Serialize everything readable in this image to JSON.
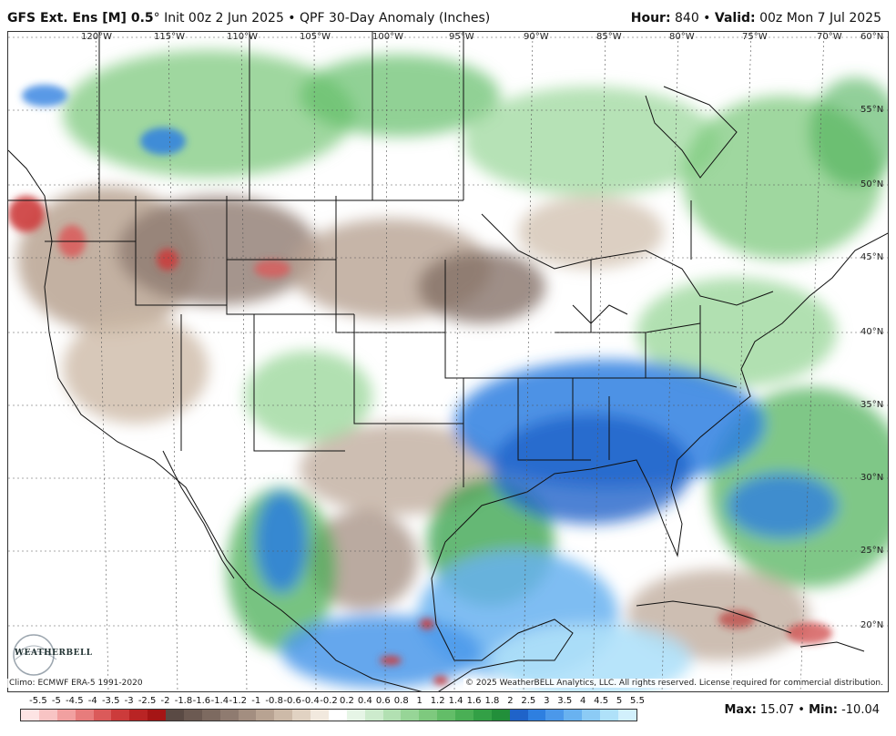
{
  "header": {
    "model": "GFS Ext. Ens [M] 0.5",
    "degree": "°",
    "init": " Init 00z 2 Jun 2025",
    "sep": " • ",
    "product": "QPF 30-Day Anomaly (Inches)",
    "hour_label": "Hour:",
    "hour_value": " 840",
    "valid_label": "Valid:",
    "valid_value": " 00z Mon 7 Jul 2025"
  },
  "map": {
    "longitudes": [
      "120°W",
      "115°W",
      "110°W",
      "105°W",
      "100°W",
      "95°W",
      "90°W",
      "85°W",
      "80°W",
      "75°W",
      "70°W"
    ],
    "latitudes": [
      "60°N",
      "55°N",
      "50°N",
      "45°N",
      "40°N",
      "35°N",
      "30°N",
      "25°N",
      "20°N"
    ],
    "climo_note": "Climo: ECMWF ERA-5 1991-2020",
    "copyright": "© 2025 WeatherBELL Analytics, LLC. All rights reserved. License required for commercial distribution.",
    "logo_text": "WEATHERBELL"
  },
  "colorbar": {
    "labels": [
      "-5.5",
      "-5",
      "-4.5",
      "-4",
      "-3.5",
      "-3",
      "-2.5",
      "-2",
      "-1.8",
      "-1.6",
      "-1.4",
      "-1.2",
      "-1",
      "-0.8",
      "-0.6",
      "-0.4",
      "-0.2",
      "0.2",
      "0.4",
      "0.6",
      "0.8",
      "1",
      "1.2",
      "1.4",
      "1.6",
      "1.8",
      "2",
      "2.5",
      "3",
      "3.5",
      "4",
      "4.5",
      "5",
      "5.5"
    ],
    "colors": [
      "#fde4e4",
      "#f8c4c4",
      "#f1a0a0",
      "#e77c7c",
      "#db5a5a",
      "#cc3b3b",
      "#b92424",
      "#a51515",
      "#5a4a44",
      "#6c5a52",
      "#7d6a60",
      "#8f7b70",
      "#a38e80",
      "#b8a392",
      "#cdbaa8",
      "#e1d2c2",
      "#f2e9de",
      "#ffffff",
      "#e6f5e6",
      "#cdebcd",
      "#b2e0b2",
      "#97d597",
      "#7ec97e",
      "#63bd68",
      "#4aaf55",
      "#33a046",
      "#228f3a",
      "#1f63c9",
      "#2e7fe0",
      "#4b98ea",
      "#69b2f0",
      "#8ccbf5",
      "#afe1f9",
      "#d2f0fc"
    ]
  },
  "stats": {
    "max_label": "Max:",
    "max_value": " 15.07",
    "sep": " • ",
    "min_label": "Min:",
    "min_value": " -10.04"
  }
}
